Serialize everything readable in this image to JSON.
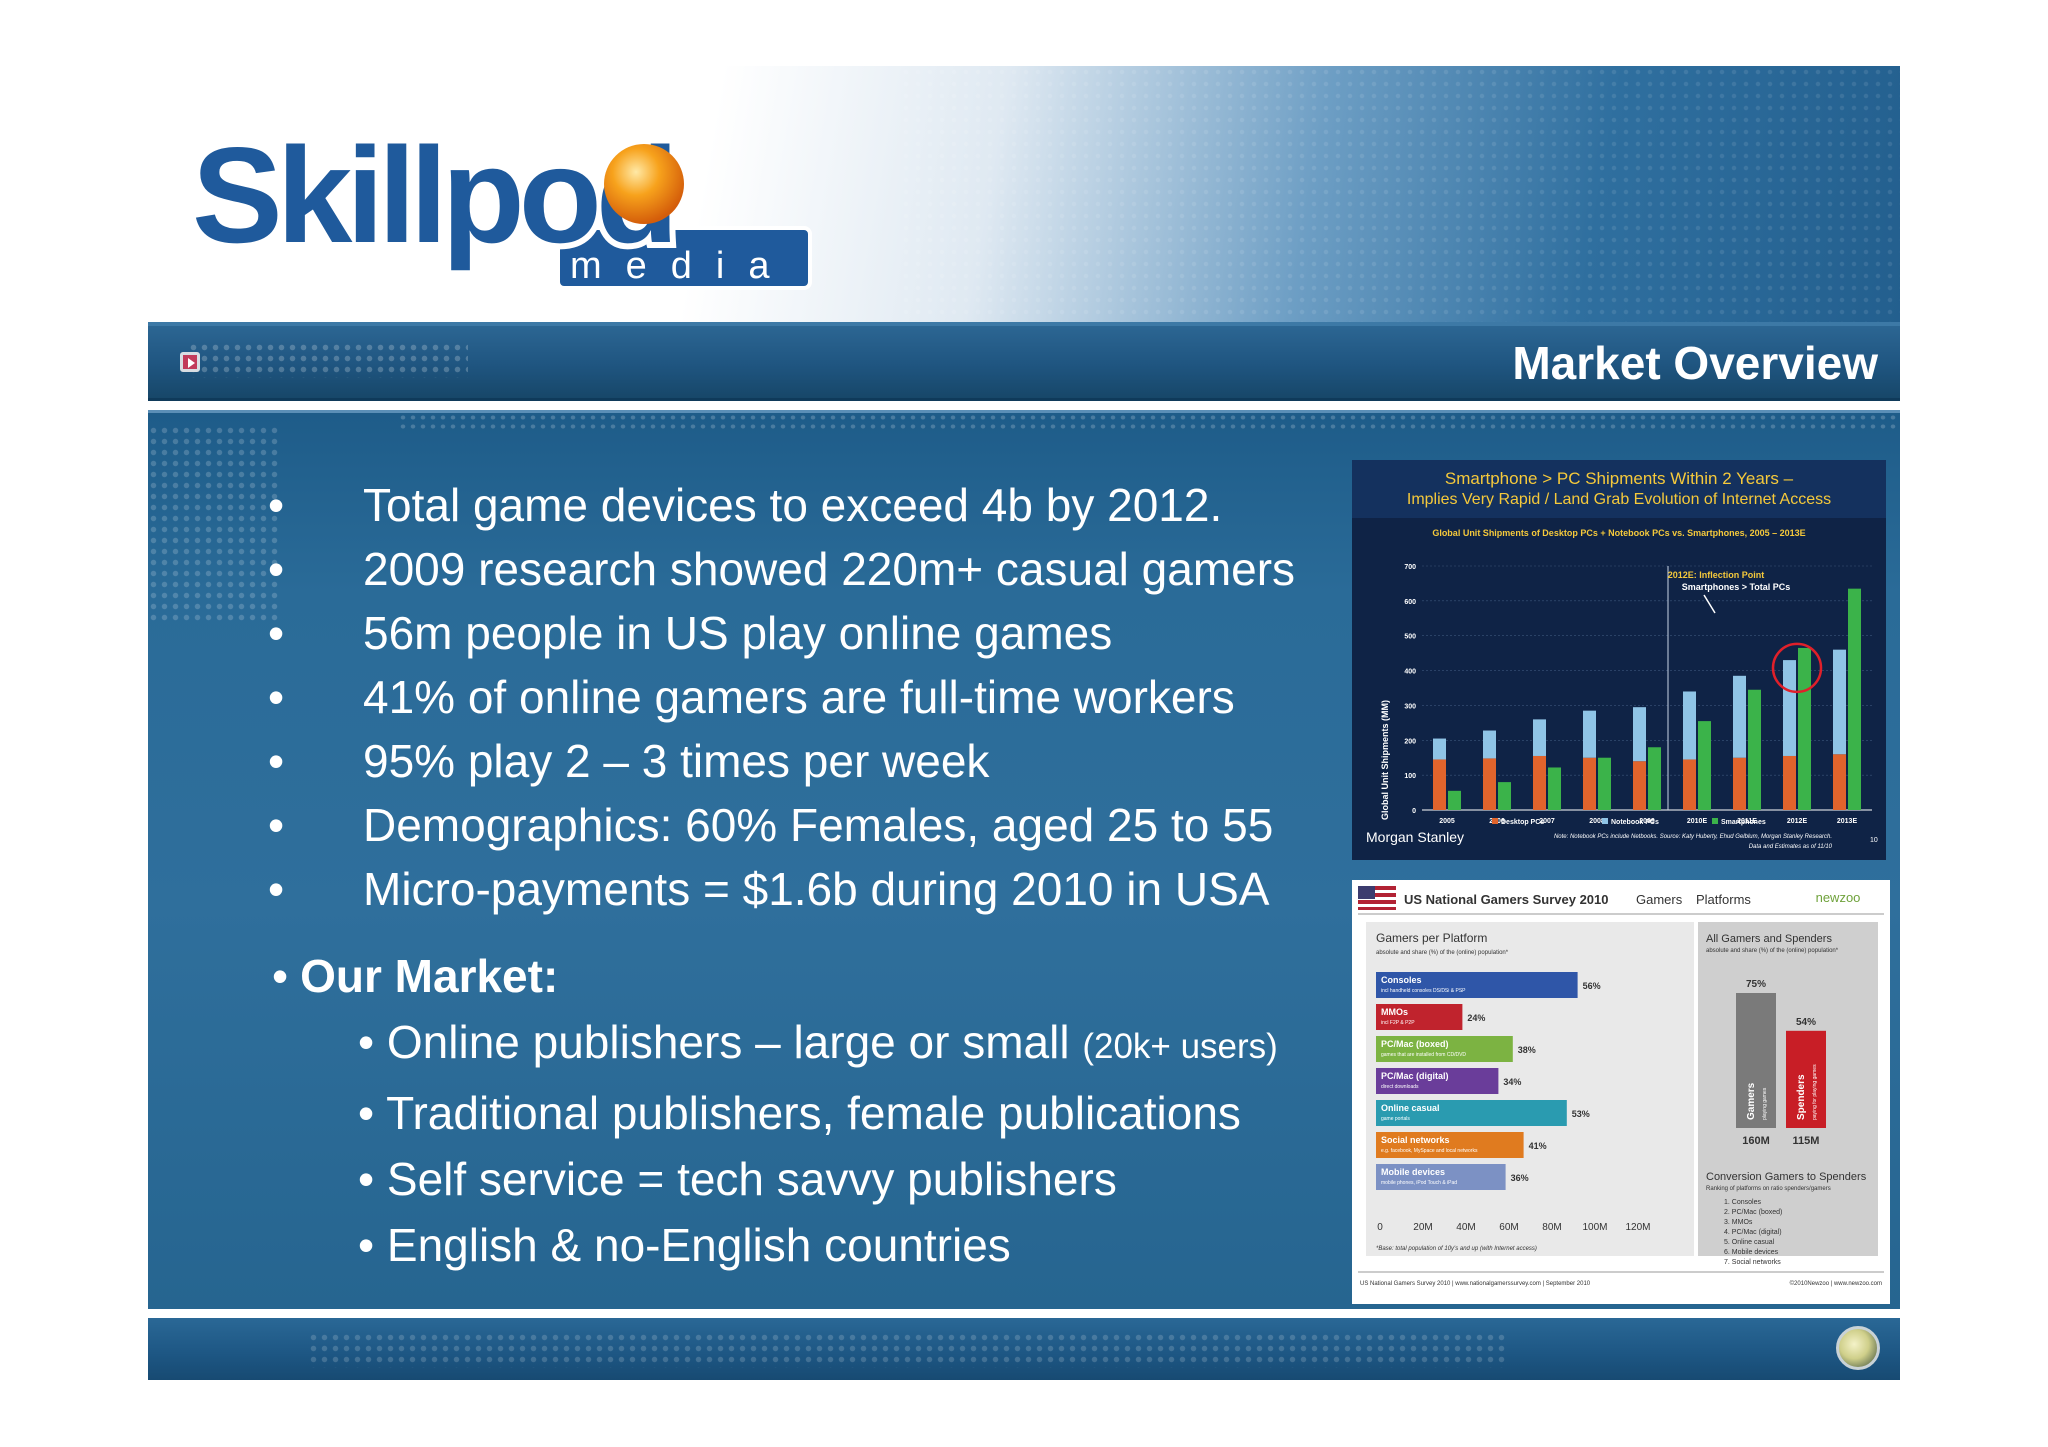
{
  "logo": {
    "brand": "Skillpod",
    "sub": "media"
  },
  "title": "Market Overview",
  "bullets": [
    "Total game devices to exceed 4b by 2012.",
    "2009 research showed 220m+ casual gamers",
    "56m people in US play online games",
    "41% of online gamers are full-time workers",
    "95% play 2 – 3 times per week",
    "Demographics: 60% Females, aged 25 to 55",
    "Micro-payments = $1.6b during 2010 in USA"
  ],
  "bullet_char": "•",
  "our_market": {
    "heading": "Our Market:",
    "items": [
      {
        "text": "Online publishers – large or small ",
        "note": "(20k+ users)"
      },
      {
        "text": "Traditional publishers, female publications",
        "note": ""
      },
      {
        "text": "Self service = tech savvy publishers",
        "note": ""
      },
      {
        "text": "English & no-English countries",
        "note": ""
      }
    ]
  },
  "chart_data": [
    {
      "type": "bar",
      "title": "Smartphone > PC Shipments Within 2 Years –",
      "subtitle": "Implies Very Rapid / Land Grab Evolution of Internet Access",
      "chart_title": "Global Unit Shipments of Desktop PCs + Notebook PCs vs. Smartphones, 2005 – 2013E",
      "ylabel": "Global Unit Shipments (MM)",
      "ylim": [
        0,
        700
      ],
      "yticks": [
        0,
        100,
        200,
        300,
        400,
        500,
        600,
        700
      ],
      "categories": [
        "2005",
        "2006",
        "2007",
        "2008",
        "2009",
        "2010E",
        "2011E",
        "2012E",
        "2013E"
      ],
      "series": [
        {
          "name": "Desktop PCs",
          "stack": "pc",
          "color": "#e0642c",
          "values": [
            145,
            148,
            155,
            150,
            140,
            145,
            150,
            155,
            160
          ]
        },
        {
          "name": "Notebook PCs",
          "stack": "pc",
          "color": "#8fc4e6",
          "values": [
            60,
            80,
            105,
            135,
            155,
            195,
            235,
            275,
            300
          ]
        },
        {
          "name": "Smartphones",
          "stack": "sp",
          "color": "#3bb34a",
          "values": [
            55,
            80,
            122,
            150,
            180,
            255,
            345,
            465,
            635
          ]
        }
      ],
      "annotation": [
        "2012E: Inflection Point",
        "Smartphones > Total PCs"
      ],
      "source_label": "Morgan Stanley",
      "note": "Note: Notebook PCs include Netbooks. Source: Katy Huberty, Ehud Gelblum, Morgan Stanley Research.",
      "note2": "Data and Estimates as of 11/10",
      "page": "10",
      "colors": {
        "background": "#0f2346",
        "title": "#f5c93b"
      }
    },
    {
      "type": "bar",
      "orientation": "horizontal",
      "header": "US National Gamers Survey 2010",
      "header_tabs": [
        "Gamers",
        "Platforms"
      ],
      "brand": "newzoo",
      "title": "Gamers per Platform",
      "subtitle": "absolute and share (%) of the (online) population*",
      "categories": [
        "Consoles",
        "MMOs",
        "PC/Mac (boxed)",
        "PC/Mac (digital)",
        "Online casual",
        "Social networks",
        "Mobile devices"
      ],
      "category_notes": [
        "incl handheld consoles DS/DSi & PSP",
        "incl F2P & P2P",
        "games that are installed from CD/DVD",
        "direct downloads",
        "game portals",
        "e.g. facebook, MySpace and local networks",
        "mobile phones, iPod Touch & iPad"
      ],
      "values_pct": [
        56,
        24,
        38,
        34,
        53,
        41,
        36
      ],
      "value_labels": [
        "56%",
        "24%",
        "38%",
        "34%",
        "53%",
        "41%",
        "36%"
      ],
      "bar_colors": [
        "#2f56a8",
        "#c0232d",
        "#7cb342",
        "#6a3d9a",
        "#2a9bb0",
        "#e07b1f",
        "#7c91c4"
      ],
      "xticks": [
        "0",
        "20M",
        "40M",
        "60M",
        "80M",
        "100M",
        "120M"
      ],
      "footnote": "*Base: total population of 10y's and up (with Internet access)",
      "side_panel": {
        "title": "All Gamers and Spenders",
        "subtitle": "absolute and share (%) of the (online) population*",
        "bars": [
          {
            "name": "Gamers",
            "sub": "playing games",
            "pct": "75%",
            "abs": "160M",
            "color": "#7a7a7a"
          },
          {
            "name": "Spenders",
            "sub": "paying for playing games",
            "pct": "54%",
            "abs": "115M",
            "color": "#c81e26"
          }
        ],
        "conversion_title": "Conversion Gamers to Spenders",
        "conversion_sub": "Ranking of platforms on ratio spenders/gamers",
        "ranking": [
          "1. Consoles",
          "2. PC/Mac (boxed)",
          "3. MMOs",
          "4. PC/Mac (digital)",
          "5. Online casual",
          "6. Mobile devices",
          "7. Social networks"
        ]
      },
      "footer_left": "US National Gamers Survey 2010 | www.nationalgamerssurvey.com | September 2010",
      "footer_right": "©2010Newzoo | www.newzoo.com"
    }
  ]
}
